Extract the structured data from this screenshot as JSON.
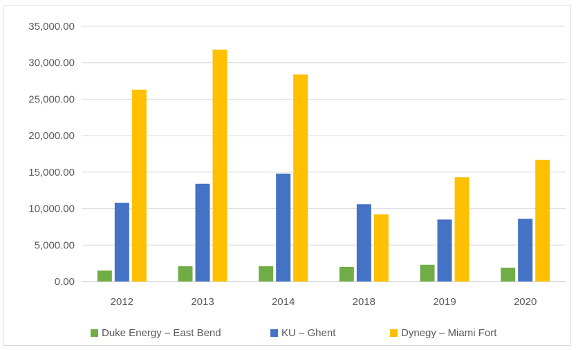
{
  "chart_data": {
    "type": "bar",
    "categories": [
      "2012",
      "2013",
      "2014",
      "2018",
      "2019",
      "2020"
    ],
    "series": [
      {
        "name": "Duke Energy – East Bend",
        "color": "#70ad47",
        "values": [
          1500,
          2100,
          2100,
          2000,
          2300,
          1900
        ]
      },
      {
        "name": "KU – Ghent",
        "color": "#4472c4",
        "values": [
          10800,
          13400,
          14800,
          10600,
          8500,
          8600
        ]
      },
      {
        "name": "Dynegy – Miami Fort",
        "color": "#ffc000",
        "values": [
          26300,
          31800,
          28400,
          9200,
          14300,
          16700
        ]
      }
    ],
    "yticks": [
      "0.00",
      "5,000.00",
      "10,000.00",
      "15,000.00",
      "20,000.00",
      "25,000.00",
      "30,000.00",
      "35,000.00"
    ],
    "ylim": [
      0,
      35000
    ],
    "grid": true,
    "legend_position": "bottom",
    "title": "",
    "xlabel": "",
    "ylabel": ""
  }
}
